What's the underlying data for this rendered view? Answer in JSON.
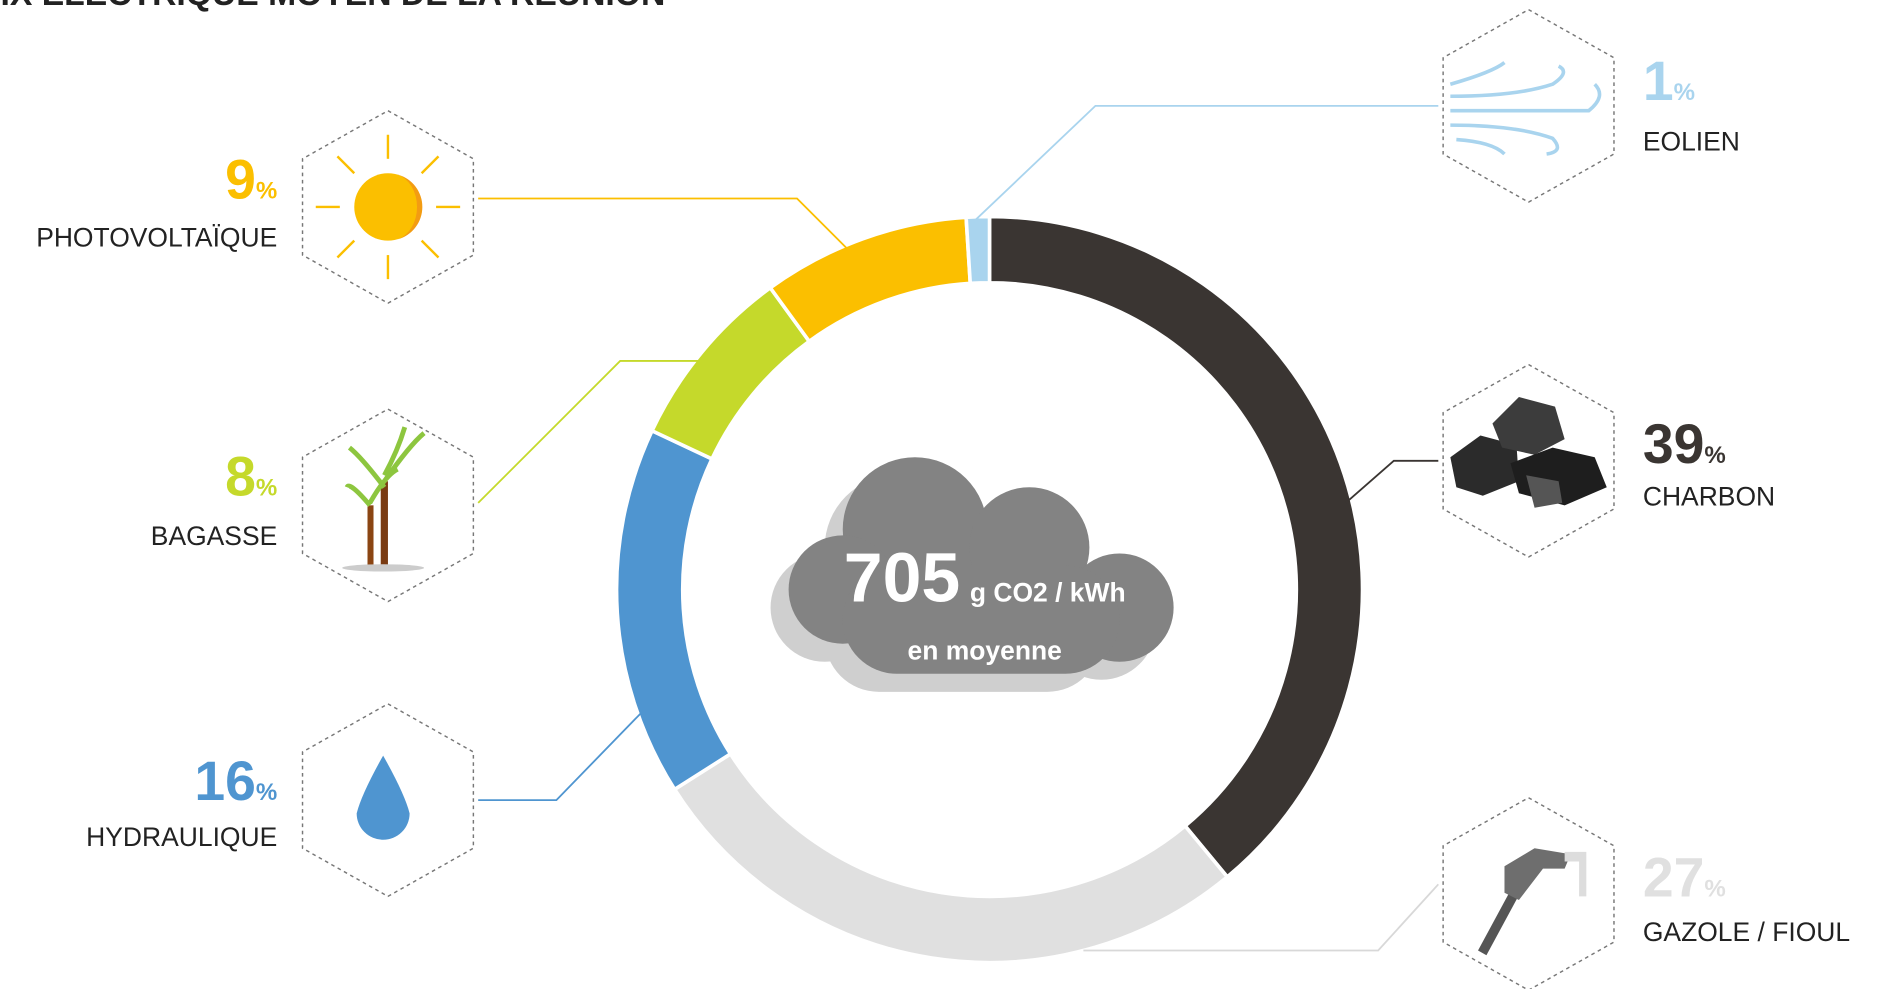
{
  "chart_data": {
    "type": "donut",
    "title": "IX ÉLECTRIQUE MOYEN DE LA RÉUNION",
    "categories": [
      "CHARBON",
      "GAZOLE / FIOUL",
      "HYDRAULIQUE",
      "BAGASSE",
      "PHOTOVOLTAÏQUE",
      "EOLIEN"
    ],
    "values": [
      39,
      27,
      16,
      8,
      9,
      1
    ],
    "colors": [
      "#3a3532",
      "#e0e0e0",
      "#4f95d0",
      "#c5d92b",
      "#fbbf00",
      "#a9d4ee"
    ],
    "unit": "%",
    "center": {
      "value": 705,
      "unit": "g CO2 / kWh",
      "caption": "en moyenne"
    }
  }
}
